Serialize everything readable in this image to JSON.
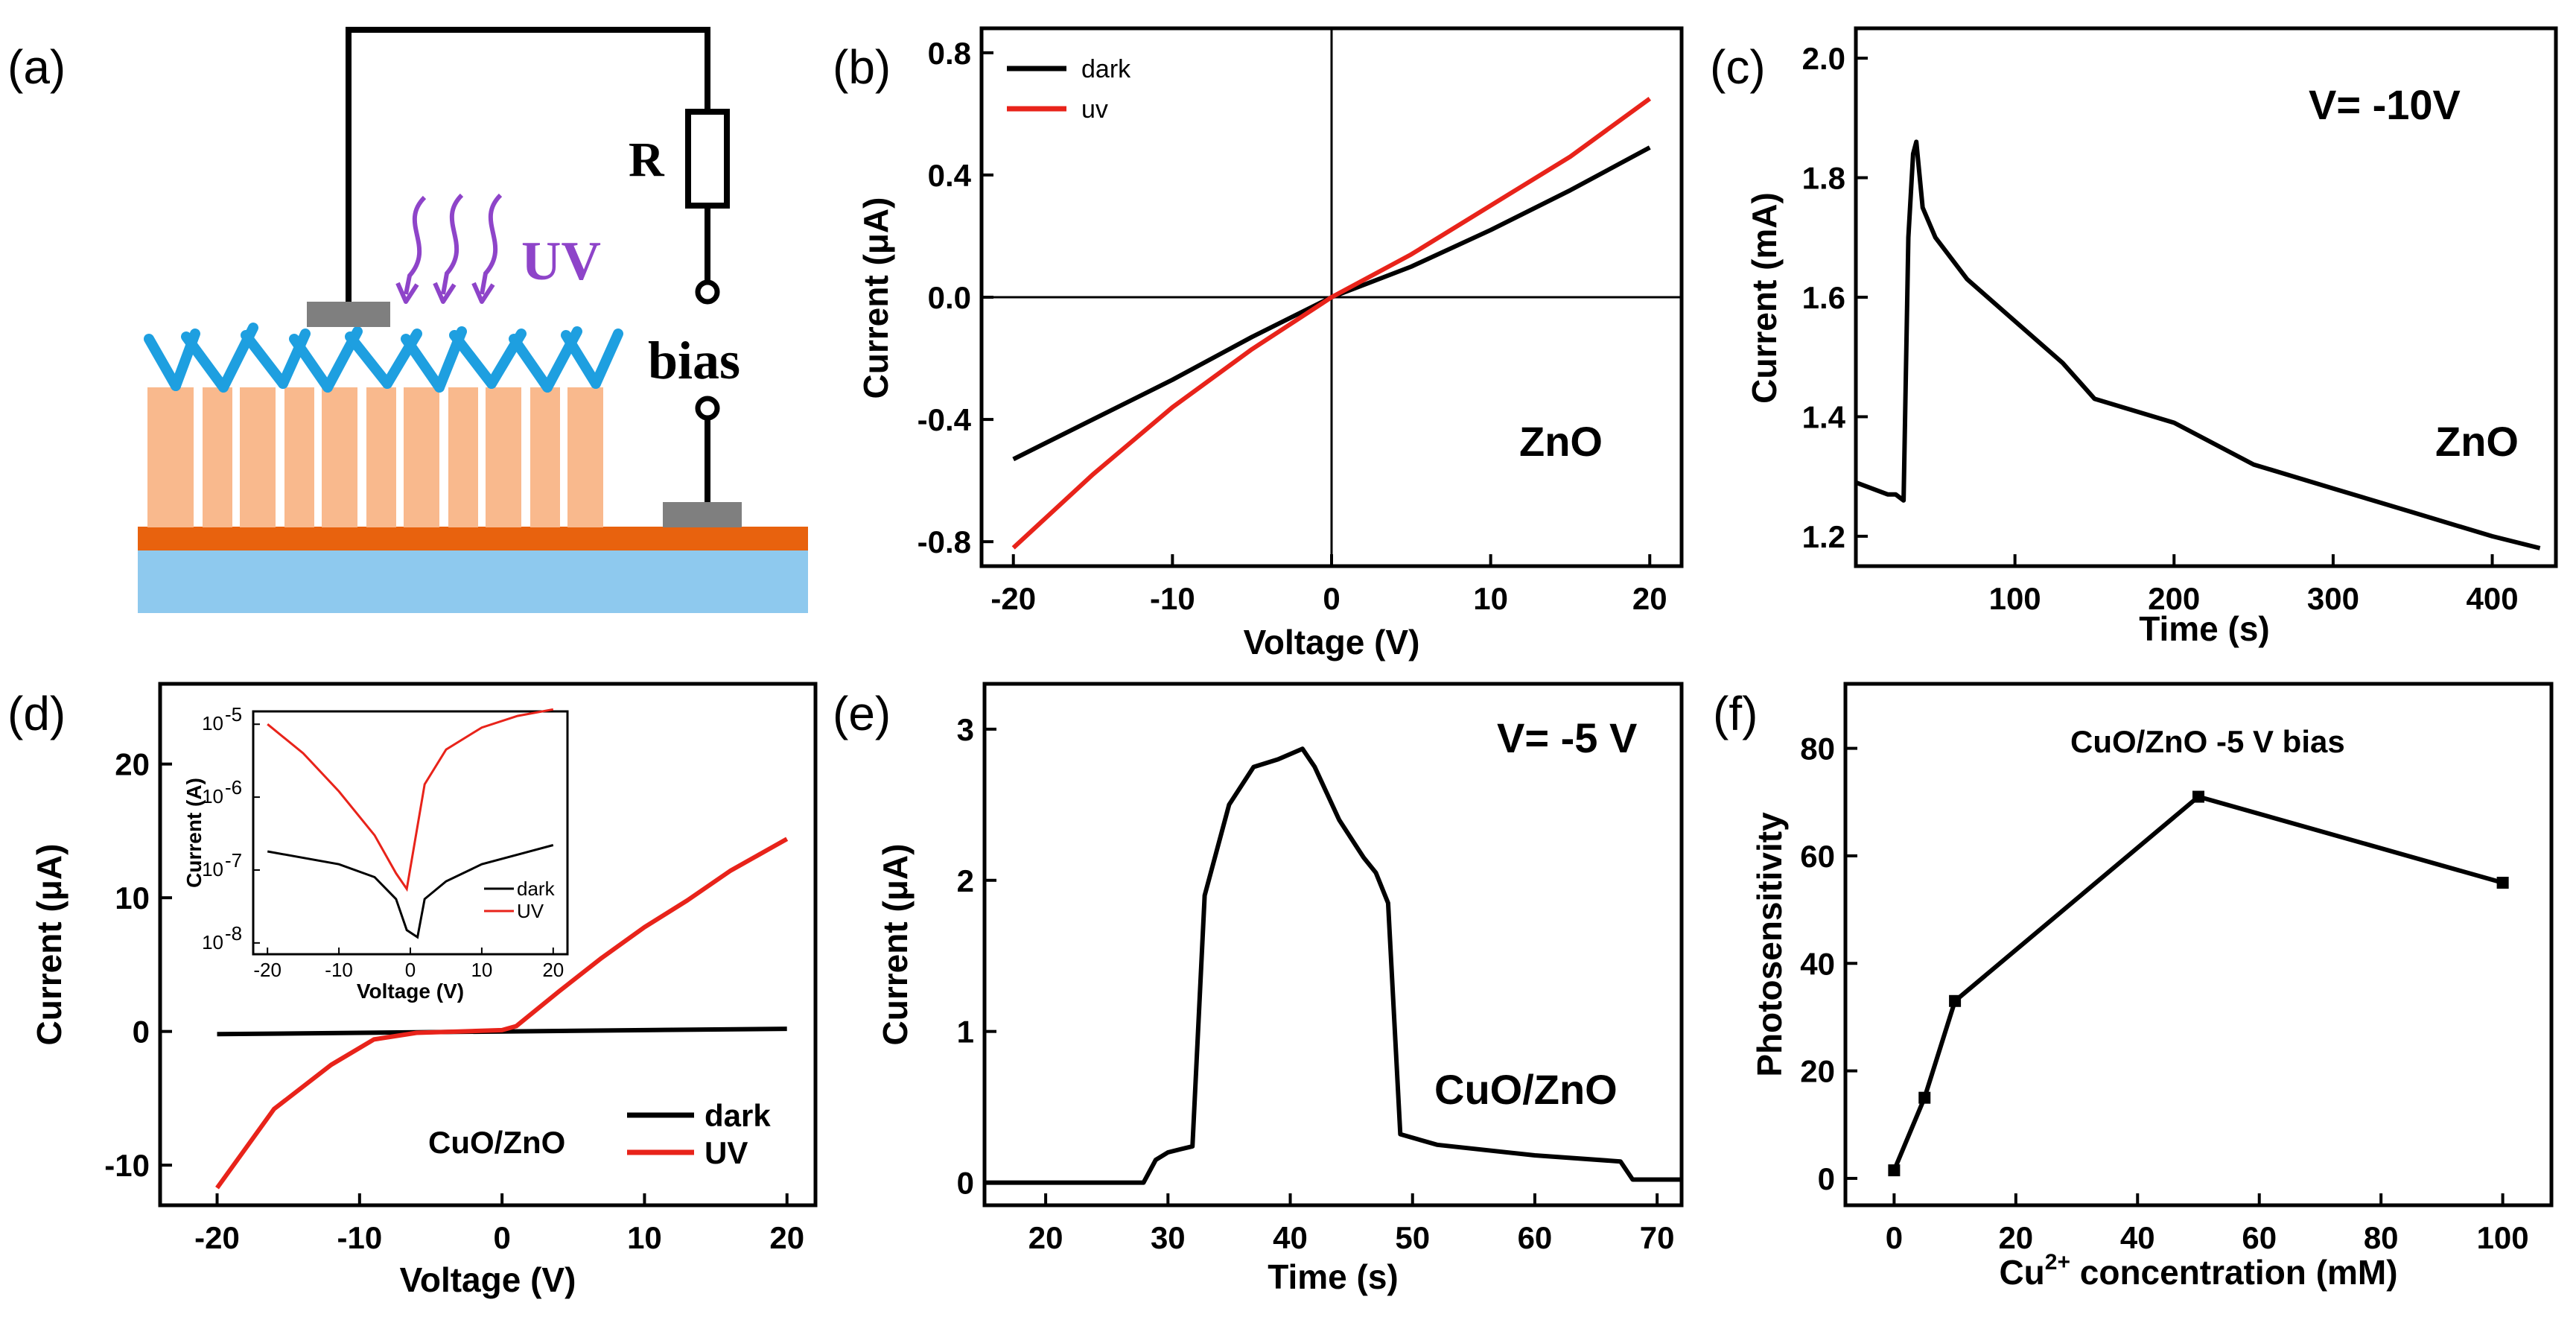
{
  "panel_labels": [
    "(a)",
    "(b)",
    "(c)",
    "(d)",
    "(e)",
    "(f)"
  ],
  "colors": {
    "dark": "#000000",
    "uv": "#e8231a",
    "uv_arrow": "#8e44c9",
    "substrate": "#8ec9ee",
    "film": "#e8620e",
    "rods": "#f9b98d",
    "branches": "#1e9fe0",
    "contact": "#7f7f7f"
  },
  "schematic": {
    "r_label": "R",
    "uv_label": "UV",
    "bias_label": "bias"
  },
  "chart_data": [
    {
      "id": "b",
      "type": "line",
      "xlabel": "Voltage (V)",
      "ylabel": "Current (μA)",
      "xlim": [
        -22,
        22
      ],
      "ylim": [
        -0.88,
        0.88
      ],
      "xticks": [
        -20,
        -10,
        0,
        10,
        20
      ],
      "xtick_labels": [
        "-20",
        "-10",
        "0",
        "10",
        "20"
      ],
      "yticks": [
        -0.8,
        -0.4,
        0.0,
        0.4,
        0.8
      ],
      "ytick_labels": [
        "-0.8",
        "-0.4",
        "0.0",
        "0.4",
        "0.8"
      ],
      "annotation": "ZnO",
      "legend": [
        "dark",
        "uv"
      ],
      "series": [
        {
          "name": "dark",
          "x": [
            -20,
            -15,
            -10,
            -5,
            0,
            5,
            10,
            15,
            20
          ],
          "values": [
            -0.53,
            -0.4,
            -0.27,
            -0.13,
            0.0,
            0.1,
            0.22,
            0.35,
            0.49
          ]
        },
        {
          "name": "uv",
          "x": [
            -20,
            -15,
            -10,
            -5,
            0,
            5,
            10,
            15,
            20
          ],
          "values": [
            -0.82,
            -0.58,
            -0.36,
            -0.17,
            0.0,
            0.14,
            0.3,
            0.46,
            0.65
          ]
        }
      ]
    },
    {
      "id": "c",
      "type": "line",
      "xlabel": "Time (s)",
      "ylabel": "Current (mA)",
      "xlim": [
        0,
        440
      ],
      "ylim": [
        1.15,
        2.05
      ],
      "xticks": [
        100,
        200,
        300,
        400
      ],
      "xtick_labels": [
        "100",
        "200",
        "300",
        "400"
      ],
      "yticks": [
        1.2,
        1.4,
        1.6,
        1.8,
        2.0
      ],
      "ytick_labels": [
        "1.2",
        "1.4",
        "1.6",
        "1.8",
        "2.0"
      ],
      "annotations": [
        "V= -10V",
        "ZnO"
      ],
      "series": [
        {
          "name": "ZnO",
          "x": [
            0,
            10,
            20,
            25,
            30,
            33,
            36,
            38,
            42,
            50,
            70,
            100,
            130,
            150,
            200,
            250,
            300,
            350,
            400,
            430
          ],
          "values": [
            1.29,
            1.28,
            1.27,
            1.27,
            1.26,
            1.7,
            1.84,
            1.86,
            1.75,
            1.7,
            1.63,
            1.56,
            1.49,
            1.43,
            1.39,
            1.32,
            1.28,
            1.24,
            1.2,
            1.18
          ]
        }
      ]
    },
    {
      "id": "d",
      "type": "line",
      "xlabel": "Voltage (V)",
      "ylabel": "Current (μA)",
      "xlim": [
        -24,
        22
      ],
      "ylim": [
        -13,
        26
      ],
      "xticks": [
        -20,
        -10,
        0,
        10,
        20
      ],
      "xtick_labels": [
        "-20",
        "-10",
        "0",
        "10",
        "20"
      ],
      "yticks": [
        -10,
        0,
        10,
        20
      ],
      "ytick_labels": [
        "-10",
        "0",
        "10",
        "20"
      ],
      "annotation": "CuO/ZnO",
      "legend": [
        "dark",
        "UV"
      ],
      "series": [
        {
          "name": "dark",
          "x": [
            -20,
            -10,
            0,
            10,
            20
          ],
          "values": [
            -0.2,
            -0.1,
            0.0,
            0.1,
            0.2
          ]
        },
        {
          "name": "UV",
          "x": [
            -20,
            -16,
            -12,
            -9,
            -6,
            -3,
            0,
            1,
            4,
            7,
            10,
            13,
            16,
            20
          ],
          "values": [
            -11.7,
            -5.8,
            -2.5,
            -0.6,
            -0.1,
            0.0,
            0.1,
            0.4,
            3.0,
            5.5,
            7.8,
            9.8,
            12.0,
            14.4
          ]
        }
      ],
      "inset": {
        "xlabel": "Voltage (V)",
        "ylabel": "Current (A)",
        "yscale": "log",
        "xlim": [
          -22,
          22
        ],
        "ylim": [
          7e-09,
          1.5e-05
        ],
        "xticks": [
          -20,
          -10,
          0,
          10,
          20
        ],
        "xtick_labels": [
          "-20",
          "-10",
          "0",
          "10",
          "20"
        ],
        "ytick_base": "10",
        "ytick_exponents": [
          -5,
          -6,
          -7,
          -8
        ],
        "legend": [
          "dark",
          "UV"
        ],
        "series": [
          {
            "name": "dark",
            "x": [
              -20,
              -10,
              -5,
              -2,
              -0.5,
              1,
              2,
              5,
              10,
              20
            ],
            "values": [
              1.8e-07,
              1.2e-07,
              8e-08,
              4e-08,
              1.5e-08,
              1.2e-08,
              4e-08,
              7e-08,
              1.2e-07,
              2.2e-07
            ]
          },
          {
            "name": "UV",
            "x": [
              -20,
              -15,
              -10,
              -5,
              -2,
              -0.5,
              2,
              5,
              10,
              15,
              20
            ],
            "values": [
              1e-05,
              4e-06,
              1.2e-06,
              3e-07,
              9e-08,
              5.5e-08,
              1.5e-06,
              4.5e-06,
              9e-06,
              1.3e-05,
              1.6e-05
            ]
          }
        ]
      }
    },
    {
      "id": "e",
      "type": "line",
      "xlabel": "Time (s)",
      "ylabel": "Current (μA)",
      "xlim": [
        15,
        72
      ],
      "ylim": [
        -0.15,
        3.3
      ],
      "xticks": [
        20,
        30,
        40,
        50,
        60,
        70
      ],
      "xtick_labels": [
        "20",
        "30",
        "40",
        "50",
        "60",
        "70"
      ],
      "yticks": [
        0,
        1,
        2,
        3
      ],
      "ytick_labels": [
        "0",
        "1",
        "2",
        "3"
      ],
      "annotations": [
        "V= -5 V",
        "CuO/ZnO"
      ],
      "series": [
        {
          "name": "CuO/ZnO",
          "x": [
            15,
            28,
            29,
            30,
            31,
            32,
            33,
            35,
            37,
            39,
            41,
            42,
            44,
            46,
            47,
            48,
            49,
            52,
            60,
            67,
            68,
            72
          ],
          "values": [
            0,
            0,
            0.15,
            0.2,
            0.22,
            0.24,
            1.9,
            2.5,
            2.75,
            2.8,
            2.87,
            2.75,
            2.4,
            2.15,
            2.05,
            1.85,
            0.32,
            0.25,
            0.18,
            0.14,
            0.02,
            0.02
          ]
        }
      ]
    },
    {
      "id": "f",
      "type": "line",
      "xlabel": "Cu²⁺ concentration (mM)",
      "ylabel": "Photosensitivity",
      "xlabel_parts": {
        "pre": "Cu",
        "sup": "2+",
        "post": " concentration (mM)"
      },
      "xlim": [
        -8,
        108
      ],
      "ylim": [
        -5,
        92
      ],
      "xticks": [
        0,
        20,
        40,
        60,
        80,
        100
      ],
      "xtick_labels": [
        "0",
        "20",
        "40",
        "60",
        "80",
        "100"
      ],
      "yticks": [
        0,
        20,
        40,
        60,
        80
      ],
      "ytick_labels": [
        "0",
        "20",
        "40",
        "60",
        "80"
      ],
      "annotation": "CuO/ZnO  -5 V bias",
      "series": [
        {
          "name": "CuO/ZnO",
          "x": [
            0,
            5,
            10,
            50,
            100
          ],
          "values": [
            1.5,
            15,
            33,
            71,
            55
          ]
        }
      ]
    }
  ]
}
